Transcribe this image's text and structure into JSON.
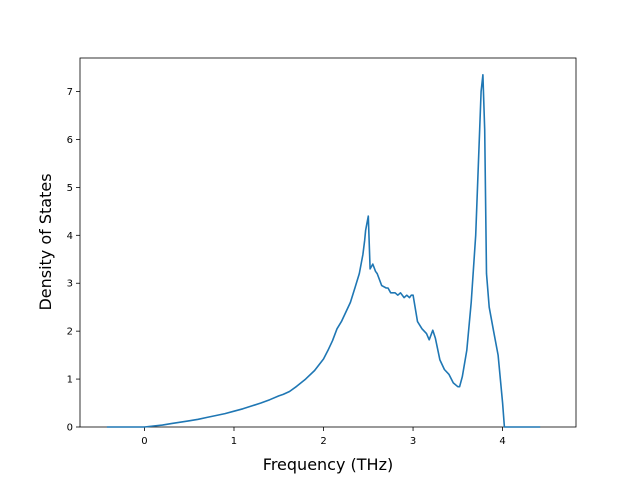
{
  "chart_data": {
    "type": "line",
    "title": "",
    "xlabel": "Frequency (THz)",
    "ylabel": "Density of States",
    "xlim": [
      -0.72,
      4.82
    ],
    "ylim": [
      0,
      7.7
    ],
    "grid": false,
    "x_ticks": [
      0,
      1,
      2,
      3,
      4
    ],
    "x_tick_labels": [
      "0",
      "1",
      "2",
      "3",
      "4"
    ],
    "y_ticks": [
      0,
      1,
      2,
      3,
      4,
      5,
      6,
      7
    ],
    "y_tick_labels": [
      "0",
      "1",
      "2",
      "3",
      "4",
      "5",
      "6",
      "7"
    ],
    "series": [
      {
        "name": "",
        "color": "#1f77b4",
        "x": [
          -0.42,
          -0.2,
          0.0,
          0.1,
          0.2,
          0.3,
          0.4,
          0.5,
          0.6,
          0.7,
          0.8,
          0.9,
          1.0,
          1.1,
          1.2,
          1.3,
          1.4,
          1.5,
          1.55,
          1.62,
          1.7,
          1.8,
          1.9,
          2.0,
          2.05,
          2.1,
          2.15,
          2.2,
          2.3,
          2.35,
          2.4,
          2.44,
          2.46,
          2.47,
          2.48,
          2.5,
          2.52,
          2.55,
          2.58,
          2.6,
          2.65,
          2.7,
          2.72,
          2.75,
          2.8,
          2.83,
          2.86,
          2.9,
          2.93,
          2.96,
          2.98,
          3.0,
          3.05,
          3.1,
          3.15,
          3.18,
          3.22,
          3.25,
          3.3,
          3.35,
          3.4,
          3.45,
          3.5,
          3.52,
          3.55,
          3.6,
          3.65,
          3.7,
          3.73,
          3.76,
          3.78,
          3.8,
          3.82,
          3.85,
          3.9,
          3.95,
          4.0,
          4.02,
          4.05,
          4.06,
          4.1,
          4.2,
          4.3,
          4.42
        ],
        "y": [
          0.0,
          0.0,
          0.0,
          0.02,
          0.04,
          0.07,
          0.1,
          0.13,
          0.16,
          0.2,
          0.24,
          0.28,
          0.33,
          0.38,
          0.44,
          0.5,
          0.57,
          0.65,
          0.68,
          0.74,
          0.85,
          1.0,
          1.18,
          1.42,
          1.6,
          1.8,
          2.05,
          2.2,
          2.6,
          2.9,
          3.2,
          3.6,
          3.9,
          4.1,
          4.2,
          4.4,
          3.3,
          3.4,
          3.25,
          3.2,
          2.95,
          2.9,
          2.9,
          2.8,
          2.8,
          2.75,
          2.8,
          2.7,
          2.75,
          2.7,
          2.75,
          2.75,
          2.2,
          2.05,
          1.95,
          1.82,
          2.02,
          1.85,
          1.4,
          1.2,
          1.1,
          0.92,
          0.84,
          0.84,
          1.05,
          1.6,
          2.6,
          4.0,
          5.5,
          7.0,
          7.35,
          6.2,
          3.2,
          2.5,
          2.0,
          1.5,
          0.5,
          0.0,
          0.0,
          0.0,
          0.0,
          0.0,
          0.0,
          0.0
        ]
      }
    ]
  }
}
